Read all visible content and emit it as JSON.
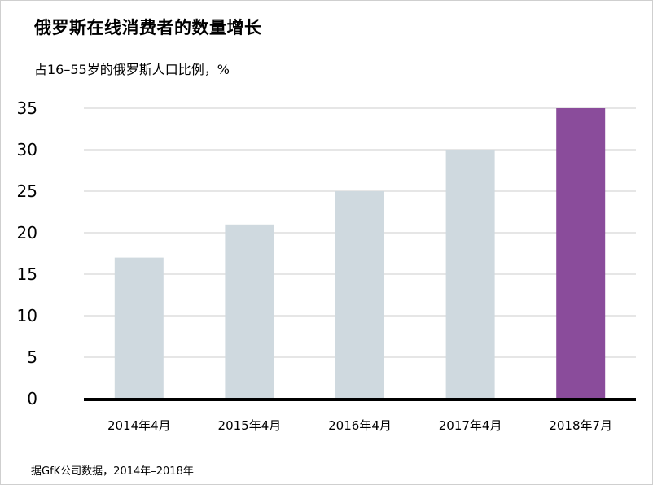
{
  "title": "俄罗斯在线消费者的数量增长",
  "subtitle": "占16–55岁的俄罗斯人口比例，%",
  "source": "据GfK公司数据，2014年–2018年",
  "colors": {
    "bar": "#cfd9df",
    "highlight": "#8a4c9b",
    "grid": "#cccccc",
    "baseline": "#000000"
  },
  "chart_data": {
    "type": "bar",
    "title": "俄罗斯在线消费者的数量增长",
    "ylabel": "占16–55岁的俄罗斯人口比例，%",
    "xlabel": "",
    "categories": [
      "2014年4月",
      "2015年4月",
      "2016年4月",
      "2017年4月",
      "2018年7月"
    ],
    "values": [
      17,
      21,
      25,
      30,
      35
    ],
    "highlight_index": 4,
    "ylim": [
      0,
      35
    ],
    "yticks": [
      0,
      5,
      10,
      15,
      20,
      25,
      30,
      35
    ],
    "grid": true,
    "legend": "none"
  }
}
